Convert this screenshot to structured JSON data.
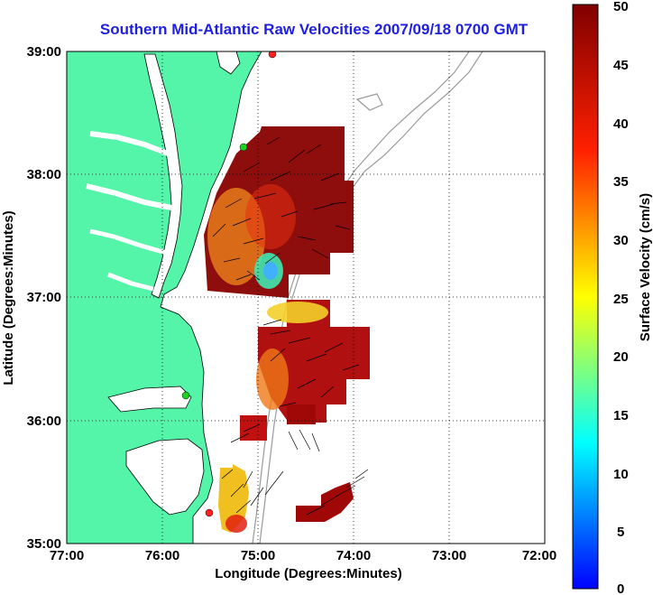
{
  "title": "Southern Mid-Atlantic Raw Velocities 2007/09/18 0700 GMT",
  "map": {
    "xlabel": "Longitude (Degrees:Minutes)",
    "ylabel": "Latitude (Degrees:Minutes)",
    "x_ticks": [
      "77:00",
      "76:00",
      "75:00",
      "74:00",
      "73:00",
      "72:00"
    ],
    "y_ticks": [
      "39:00",
      "38:00",
      "37:00",
      "36:00",
      "35:00"
    ],
    "lon_range": [
      -77,
      -72
    ],
    "lat_range": [
      35,
      39
    ],
    "grid": "dotted",
    "land_color": "#55f5a9",
    "coast_color": "#000000",
    "bathymetry_color": "#999999"
  },
  "colorbar": {
    "label": "Surface Velocity (cm/s)",
    "ticks": [
      "50",
      "45",
      "40",
      "35",
      "30",
      "25",
      "20",
      "15",
      "10",
      "5",
      "0"
    ],
    "range": [
      0,
      50
    ],
    "colormap": "jet"
  },
  "stations": [
    {
      "lon": -74.85,
      "lat": 39.0,
      "color": "#ff2020"
    },
    {
      "lon": -75.08,
      "lat": 38.2,
      "color": "#1fd11f"
    },
    {
      "lon": -75.75,
      "lat": 36.18,
      "color": "#1fd11f"
    },
    {
      "lon": -75.48,
      "lat": 35.27,
      "color": "#ff2020"
    }
  ]
}
